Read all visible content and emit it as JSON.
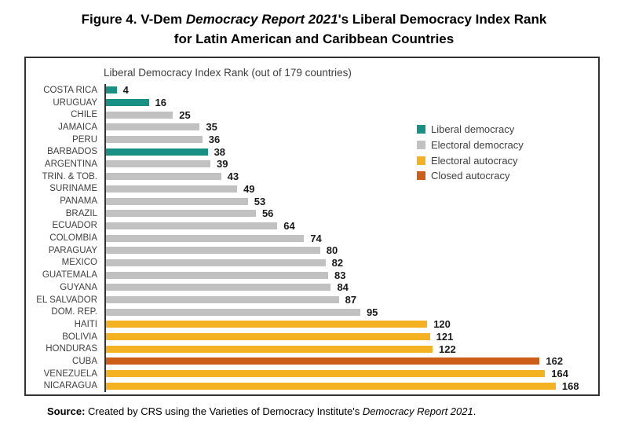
{
  "figure_title": {
    "prefix": "Figure 4. V-Dem ",
    "italic": "Democracy Report 2021",
    "suffix": "'s Liberal Democracy Index Rank",
    "line2": "for Latin American and Caribbean Countries"
  },
  "source_note": {
    "label": "Source:",
    "text_before_italic": " Created by CRS using the Varieties of Democracy Institute's ",
    "italic": "Democracy Report 2021",
    "text_after_italic": "."
  },
  "chart_data": {
    "type": "bar",
    "orientation": "horizontal",
    "title": "Liberal Democracy Index Rank (out of 179 countries)",
    "x_max": 179,
    "grid": false,
    "legend_position": "upper-right",
    "rows": [
      {
        "country": "COSTA RICA",
        "rank": 4,
        "group": "Liberal democracy"
      },
      {
        "country": "URUGUAY",
        "rank": 16,
        "group": "Liberal democracy"
      },
      {
        "country": "CHILE",
        "rank": 25,
        "group": "Electoral democracy"
      },
      {
        "country": "JAMAICA",
        "rank": 35,
        "group": "Electoral democracy"
      },
      {
        "country": "PERU",
        "rank": 36,
        "group": "Electoral democracy"
      },
      {
        "country": "BARBADOS",
        "rank": 38,
        "group": "Liberal democracy"
      },
      {
        "country": "ARGENTINA",
        "rank": 39,
        "group": "Electoral democracy"
      },
      {
        "country": "TRIN. & TOB.",
        "rank": 43,
        "group": "Electoral democracy"
      },
      {
        "country": "SURINAME",
        "rank": 49,
        "group": "Electoral democracy"
      },
      {
        "country": "PANAMA",
        "rank": 53,
        "group": "Electoral democracy"
      },
      {
        "country": "BRAZIL",
        "rank": 56,
        "group": "Electoral democracy"
      },
      {
        "country": "ECUADOR",
        "rank": 64,
        "group": "Electoral democracy"
      },
      {
        "country": "COLOMBIA",
        "rank": 74,
        "group": "Electoral democracy"
      },
      {
        "country": "PARAGUAY",
        "rank": 80,
        "group": "Electoral democracy"
      },
      {
        "country": "MEXICO",
        "rank": 82,
        "group": "Electoral democracy"
      },
      {
        "country": "GUATEMALA",
        "rank": 83,
        "group": "Electoral democracy"
      },
      {
        "country": "GUYANA",
        "rank": 84,
        "group": "Electoral democracy"
      },
      {
        "country": "EL SALVADOR",
        "rank": 87,
        "group": "Electoral democracy"
      },
      {
        "country": "DOM. REP.",
        "rank": 95,
        "group": "Electoral democracy"
      },
      {
        "country": "HAITI",
        "rank": 120,
        "group": "Electoral autocracy"
      },
      {
        "country": "BOLIVIA",
        "rank": 121,
        "group": "Electoral autocracy"
      },
      {
        "country": "HONDURAS",
        "rank": 122,
        "group": "Electoral autocracy"
      },
      {
        "country": "CUBA",
        "rank": 162,
        "group": "Closed autocracy"
      },
      {
        "country": "VENEZUELA",
        "rank": 164,
        "group": "Electoral autocracy"
      },
      {
        "country": "NICARAGUA",
        "rank": 168,
        "group": "Electoral autocracy"
      }
    ],
    "groups": {
      "Liberal democracy": "#189184",
      "Electoral democracy": "#c1c1c1",
      "Electoral autocracy": "#f4b223",
      "Closed autocracy": "#cd5e18"
    },
    "legend": [
      {
        "label": "Liberal democracy",
        "color": "#189184"
      },
      {
        "label": "Electoral democracy",
        "color": "#c1c1c1"
      },
      {
        "label": "Electoral autocracy",
        "color": "#f4b223"
      },
      {
        "label": "Closed autocracy",
        "color": "#cd5e18"
      }
    ]
  }
}
